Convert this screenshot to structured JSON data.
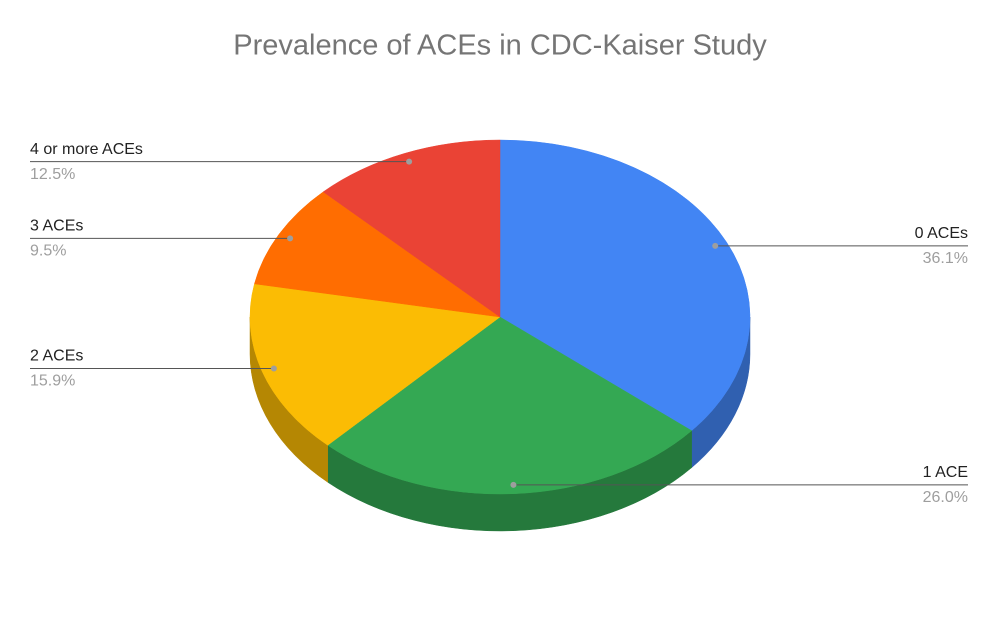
{
  "chart_data": {
    "type": "pie",
    "title": "Prevalence of ACEs in CDC-Kaiser Study",
    "categories": [
      "0 ACEs",
      "1 ACE",
      "2 ACEs",
      "3 ACEs",
      "4 or more ACEs"
    ],
    "values": [
      36.1,
      26.0,
      15.9,
      9.5,
      12.5
    ],
    "value_labels": [
      "36.1%",
      "26.0%",
      "15.9%",
      "9.5%",
      "12.5%"
    ],
    "colors": [
      "#4285f4",
      "#34a853",
      "#fbbc04",
      "#ff6d01",
      "#ea4335"
    ]
  }
}
